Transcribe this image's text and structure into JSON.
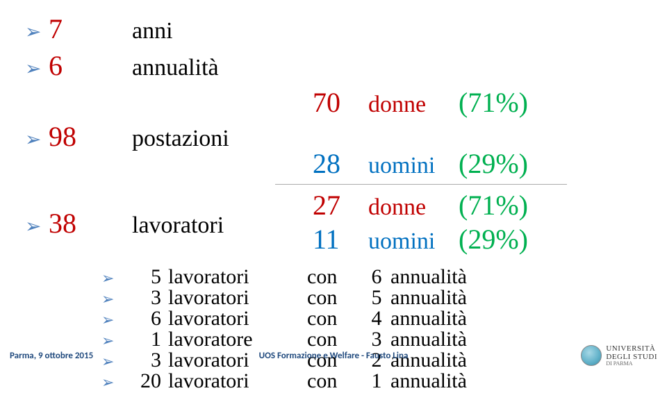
{
  "rows": [
    {
      "num": "7",
      "word": "anni"
    },
    {
      "num": "6",
      "word": "annualità"
    },
    {
      "num": "98",
      "word": "postazioni"
    }
  ],
  "stats1": [
    {
      "n": "70",
      "w": "donne",
      "p": "(71%)",
      "c": "#c00000"
    },
    {
      "n": "28",
      "w": "uomini",
      "p": "(29%)",
      "c": "#0070c0"
    }
  ],
  "mid": {
    "num": "38",
    "word": "lavoratori"
  },
  "stats2": [
    {
      "n": "27",
      "w": "donne",
      "p": "(71%)",
      "c": "#c00000"
    },
    {
      "n": "11",
      "w": "uomini",
      "p": "(29%)",
      "c": "#0070c0"
    }
  ],
  "details": [
    {
      "count": "5",
      "unit": "lavoratori",
      "con": "con",
      "n": "6",
      "ann": "annualità"
    },
    {
      "count": "3",
      "unit": "lavoratori",
      "con": "con",
      "n": "5",
      "ann": "annualità"
    },
    {
      "count": "6",
      "unit": "lavoratori",
      "con": "con",
      "n": "4",
      "ann": "annualità"
    },
    {
      "count": "1",
      "unit": "lavoratore",
      "con": "con",
      "n": "3",
      "ann": "annualità"
    },
    {
      "count": "3",
      "unit": "lavoratori",
      "con": "con",
      "n": "2",
      "ann": "annualità"
    },
    {
      "count": "20",
      "unit": "lavoratori",
      "con": "con",
      "n": "1",
      "ann": "annualità"
    }
  ],
  "footer": {
    "left": "Parma, 9 ottobre 2015",
    "center": "UOS Formazione e Welfare - Fausto Lina",
    "uni1": "UNIVERSITÀ",
    "uni2": "DEGLI STUDI",
    "uni3": "DI PARMA"
  },
  "colors": {
    "bullet": "#4f81bd",
    "red": "#c00000",
    "blue": "#0070c0",
    "green": "#00b050",
    "footer": "#1f497d"
  }
}
